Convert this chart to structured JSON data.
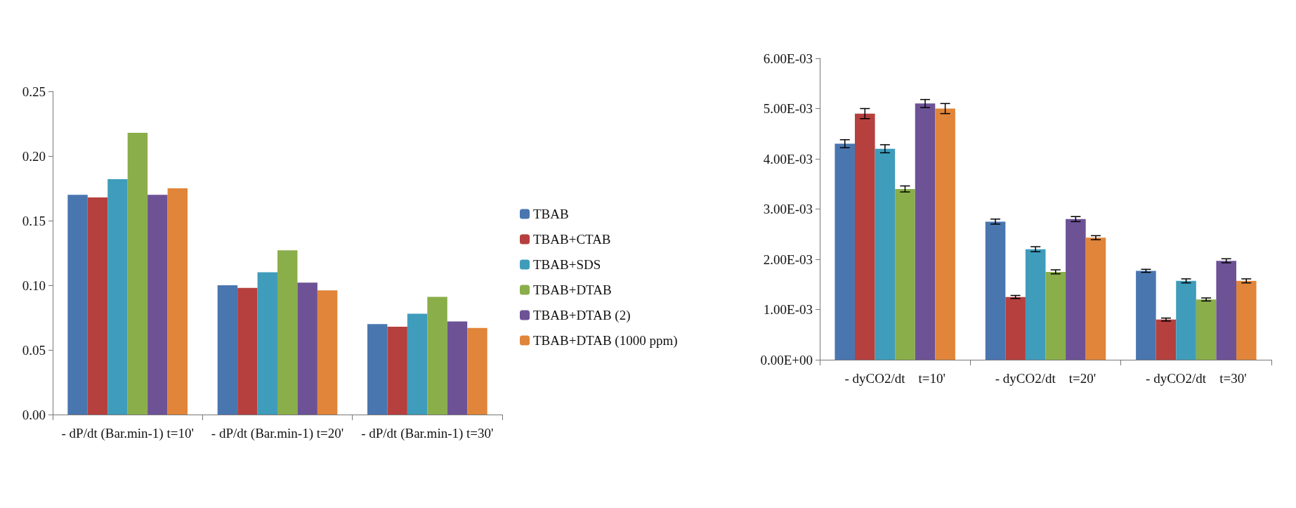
{
  "chart_data": [
    {
      "type": "bar",
      "categories": [
        "- dP/dt (Bar.min-1) t=10'",
        "- dP/dt (Bar.min-1) t=20'",
        "- dP/dt (Bar.min-1) t=30'"
      ],
      "series": [
        {
          "name": "TBAB",
          "color": "#4a76b0",
          "values": [
            0.17,
            0.1,
            0.07
          ]
        },
        {
          "name": "TBAB+CTAB",
          "color": "#b5403e",
          "values": [
            0.168,
            0.098,
            0.068
          ]
        },
        {
          "name": "TBAB+SDS",
          "color": "#3f9cbb",
          "values": [
            0.182,
            0.11,
            0.078
          ]
        },
        {
          "name": "TBAB+DTAB",
          "color": "#8aae4a",
          "values": [
            0.218,
            0.127,
            0.091
          ]
        },
        {
          "name": "TBAB+DTAB (2)",
          "color": "#6d5296",
          "values": [
            0.17,
            0.102,
            0.072
          ]
        },
        {
          "name": "TBAB+DTAB (1000 ppm)",
          "color": "#e0853a",
          "values": [
            0.175,
            0.096,
            0.067
          ]
        }
      ],
      "ylim": [
        0,
        0.25
      ],
      "yticks": [
        {
          "value": 0,
          "label": "0.00"
        },
        {
          "value": 0.05,
          "label": "0.05"
        },
        {
          "value": 0.1,
          "label": "0.10"
        },
        {
          "value": 0.15,
          "label": "0.15"
        },
        {
          "value": 0.2,
          "label": "0.20"
        },
        {
          "value": 0.25,
          "label": "0.25"
        }
      ],
      "grid": false,
      "legend": "right"
    },
    {
      "type": "bar",
      "categories": [
        "- dyCO2/dt    t=10'",
        "- dyCO2/dt    t=20'",
        "- dyCO2/dt    t=30'"
      ],
      "series": [
        {
          "color": "#4a76b0",
          "values": [
            0.0043,
            0.00275,
            0.00177
          ],
          "errors": [
            8e-05,
            5e-05,
            3e-05
          ]
        },
        {
          "color": "#b5403e",
          "values": [
            0.0049,
            0.00125,
            0.0008
          ],
          "errors": [
            0.0001,
            3e-05,
            3e-05
          ]
        },
        {
          "color": "#3f9cbb",
          "values": [
            0.0042,
            0.0022,
            0.00157
          ],
          "errors": [
            8e-05,
            5e-05,
            4e-05
          ]
        },
        {
          "color": "#8aae4a",
          "values": [
            0.0034,
            0.00175,
            0.0012
          ],
          "errors": [
            6e-05,
            4e-05,
            3e-05
          ]
        },
        {
          "color": "#6d5296",
          "values": [
            0.0051,
            0.0028,
            0.00197
          ],
          "errors": [
            8e-05,
            5e-05,
            4e-05
          ]
        },
        {
          "color": "#e0853a",
          "values": [
            0.005,
            0.00243,
            0.00157
          ],
          "errors": [
            0.0001,
            4e-05,
            4e-05
          ]
        }
      ],
      "ylim": [
        0,
        0.006
      ],
      "yticks": [
        {
          "value": 0,
          "label": "0.00E+00"
        },
        {
          "value": 0.001,
          "label": "1.00E-03"
        },
        {
          "value": 0.002,
          "label": "2.00E-03"
        },
        {
          "value": 0.003,
          "label": "3.00E-03"
        },
        {
          "value": 0.004,
          "label": "4.00E-03"
        },
        {
          "value": 0.005,
          "label": "5.00E-03"
        },
        {
          "value": 0.006,
          "label": "6.00E-03"
        }
      ],
      "grid": false,
      "legend": false
    }
  ]
}
